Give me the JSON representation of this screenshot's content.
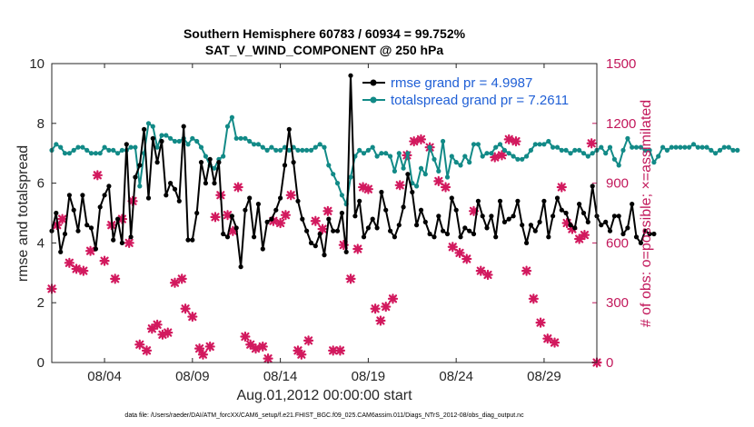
{
  "chart_data": {
    "type": "line",
    "title": "Southern Hemisphere 60783 / 60934 = 99.752%",
    "subtitle": "SAT_V_WIND_COMPONENT @ 250 hPa",
    "xlabel": "Aug.01,2012 00:00:00 start",
    "ylabel": "rmse and totalspread",
    "ylabel_right": "# of obs: o=possible; ×=assimilated",
    "footnote": "data file: /Users/raeder/DAI/ATM_forcXX/CAM6_setup/f.e21.FHIST_BGC.f09_025.CAM6assim.011/Diags_NTrS_2012-08/obs_diag_output.nc",
    "xlim": [
      1.0,
      32.0
    ],
    "ylim": [
      0,
      10
    ],
    "ylim_right": [
      0,
      1500
    ],
    "xticks": [
      4,
      9,
      14,
      19,
      24,
      29
    ],
    "xtick_labels": [
      "08/04",
      "08/09",
      "08/14",
      "08/19",
      "08/24",
      "08/29"
    ],
    "yticks": [
      0,
      2,
      4,
      6,
      8,
      10
    ],
    "yticks_right": [
      0,
      300,
      600,
      900,
      1200,
      1500
    ],
    "legend_position": "top-right",
    "series": [
      {
        "name": "rmse grand pr = 4.9987",
        "color": "#000000",
        "axis": "left",
        "marker": "circle",
        "x_start": 1.0,
        "x_step": 0.25,
        "values": [
          4.4,
          5.0,
          3.7,
          4.3,
          5.6,
          5.1,
          4.4,
          5.6,
          4.6,
          4.5,
          3.8,
          5.2,
          5.6,
          5.9,
          4.1,
          4.8,
          4.0,
          7.3,
          4.2,
          6.2,
          6.6,
          7.8,
          5.5,
          7.5,
          6.7,
          7.4,
          5.6,
          6.0,
          5.8,
          5.4,
          7.9,
          4.1,
          4.1,
          5.0,
          6.7,
          6.0,
          6.8,
          6.0,
          6.7,
          4.3,
          4.2,
          4.9,
          4.5,
          3.2,
          5.1,
          5.5,
          4.2,
          5.3,
          3.8,
          4.7,
          4.8,
          5.1,
          5.5,
          6.6,
          7.8,
          6.7,
          5.4,
          4.8,
          4.4,
          4.0,
          3.9,
          4.3,
          3.6,
          4.8,
          4.4,
          4.4,
          5.0,
          3.7,
          9.6,
          4.9,
          5.4,
          4.2,
          4.5,
          4.8,
          4.5,
          5.7,
          5.1,
          4.4,
          4.2,
          4.6,
          5.2,
          6.3,
          5.7,
          4.6,
          5.1,
          4.7,
          4.3,
          4.2,
          4.9,
          4.4,
          4.3,
          5.5,
          5.1,
          4.2,
          4.5,
          4.4,
          4.3,
          5.4,
          4.9,
          4.5,
          4.9,
          4.2,
          5.4,
          4.7,
          4.8,
          4.9,
          5.4,
          4.6,
          4.0,
          4.6,
          4.4,
          4.7,
          5.4,
          4.2,
          4.9,
          5.5,
          5.1,
          5.0,
          4.6,
          4.5,
          5.3,
          5.0,
          4.7,
          5.9,
          4.9,
          4.6,
          4.7,
          4.4,
          4.9,
          4.9,
          4.3,
          4.5,
          5.3,
          4.2,
          4.0,
          4.4,
          4.3,
          4.3
        ]
      },
      {
        "name": "totalspread grand pr = 7.2611",
        "color": "#128a87",
        "axis": "left",
        "marker": "circle",
        "x_start": 1.0,
        "x_step": 0.25,
        "values": [
          7.1,
          7.3,
          7.2,
          7.0,
          7.0,
          7.1,
          7.2,
          7.2,
          7.1,
          7.0,
          7.0,
          7.0,
          7.2,
          7.1,
          7.1,
          7.0,
          7.1,
          7.1,
          7.2,
          7.2,
          5.9,
          7.0,
          8.0,
          7.9,
          7.2,
          7.6,
          7.6,
          7.5,
          7.4,
          7.4,
          7.5,
          7.3,
          7.5,
          7.4,
          7.2,
          6.9,
          6.6,
          6.5,
          6.8,
          6.9,
          7.9,
          8.2,
          7.5,
          7.5,
          7.5,
          7.4,
          7.3,
          7.3,
          7.2,
          7.1,
          7.2,
          7.1,
          7.1,
          7.2,
          7.1,
          7.2,
          7.1,
          7.1,
          7.1,
          7.1,
          7.2,
          7.3,
          7.2,
          6.6,
          6.3,
          6.0,
          5.6,
          5.3,
          6.2,
          6.9,
          7.1,
          7.0,
          7.1,
          7.2,
          6.9,
          7.0,
          7.0,
          6.9,
          6.4,
          7.0,
          6.5,
          7.0,
          6.0,
          5.9,
          6.5,
          6.3,
          7.2,
          6.8,
          6.4,
          7.4,
          6.2,
          6.9,
          6.7,
          6.6,
          6.9,
          6.7,
          7.3,
          7.3,
          6.9,
          7.0,
          7.0,
          7.2,
          7.3,
          7.1,
          7.0,
          6.9,
          6.8,
          6.8,
          6.9,
          7.1,
          7.3,
          7.3,
          7.3,
          7.4,
          7.2,
          7.2,
          7.1,
          7.1,
          7.0,
          7.1,
          7.1,
          7.0,
          6.9,
          7.0,
          7.1,
          7.2,
          7.0,
          7.2,
          6.8,
          6.6,
          7.1,
          7.5,
          7.2,
          7.2,
          7.2,
          7.1,
          7.1,
          6.7,
          6.9,
          7.2,
          7.1,
          7.2,
          7.2,
          7.2,
          7.2,
          7.2,
          7.3,
          7.2,
          7.2,
          7.2,
          7.1,
          7.0,
          7.1,
          7.2,
          7.2,
          7.1,
          7.1
        ]
      },
      {
        "name": "# of obs assimilated",
        "color": "#d2195e",
        "axis": "right",
        "marker": "x",
        "points": [
          [
            1.0,
            370
          ],
          [
            1.3,
            690
          ],
          [
            1.6,
            720
          ],
          [
            2.0,
            500
          ],
          [
            2.4,
            470
          ],
          [
            2.8,
            460
          ],
          [
            3.2,
            560
          ],
          [
            3.6,
            940
          ],
          [
            4.0,
            510
          ],
          [
            4.4,
            690
          ],
          [
            4.6,
            420
          ],
          [
            5.0,
            720
          ],
          [
            5.4,
            600
          ],
          [
            5.6,
            810
          ],
          [
            6.0,
            90
          ],
          [
            6.4,
            60
          ],
          [
            6.7,
            170
          ],
          [
            7.0,
            190
          ],
          [
            7.3,
            140
          ],
          [
            7.6,
            150
          ],
          [
            8.0,
            400
          ],
          [
            8.4,
            420
          ],
          [
            8.6,
            270
          ],
          [
            9.0,
            230
          ],
          [
            9.4,
            70
          ],
          [
            9.6,
            40
          ],
          [
            10.0,
            80
          ],
          [
            10.3,
            730
          ],
          [
            10.6,
            840
          ],
          [
            11.0,
            740
          ],
          [
            11.3,
            660
          ],
          [
            11.6,
            880
          ],
          [
            12.0,
            130
          ],
          [
            12.3,
            90
          ],
          [
            12.6,
            70
          ],
          [
            13.0,
            80
          ],
          [
            13.3,
            20
          ],
          [
            13.6,
            710
          ],
          [
            14.0,
            700
          ],
          [
            14.3,
            740
          ],
          [
            14.6,
            840
          ],
          [
            15.0,
            60
          ],
          [
            15.2,
            40
          ],
          [
            15.6,
            110
          ],
          [
            16.0,
            710
          ],
          [
            16.4,
            670
          ],
          [
            16.7,
            760
          ],
          [
            17.0,
            60
          ],
          [
            17.4,
            60
          ],
          [
            17.6,
            590
          ],
          [
            18.0,
            420
          ],
          [
            18.4,
            570
          ],
          [
            18.7,
            880
          ],
          [
            19.0,
            870
          ],
          [
            19.4,
            270
          ],
          [
            19.7,
            210
          ],
          [
            20.0,
            280
          ],
          [
            20.4,
            320
          ],
          [
            20.8,
            890
          ],
          [
            21.2,
            1040
          ],
          [
            21.6,
            1110
          ],
          [
            22.0,
            1120
          ],
          [
            22.5,
            1080
          ],
          [
            23.0,
            910
          ],
          [
            23.4,
            880
          ],
          [
            23.8,
            580
          ],
          [
            24.2,
            550
          ],
          [
            24.6,
            520
          ],
          [
            25.0,
            760
          ],
          [
            25.4,
            460
          ],
          [
            25.8,
            440
          ],
          [
            26.2,
            1030
          ],
          [
            26.6,
            1040
          ],
          [
            27.0,
            1120
          ],
          [
            27.4,
            1110
          ],
          [
            28.0,
            460
          ],
          [
            28.4,
            320
          ],
          [
            28.8,
            200
          ],
          [
            29.2,
            120
          ],
          [
            29.6,
            100
          ],
          [
            30.0,
            880
          ],
          [
            30.3,
            700
          ],
          [
            30.6,
            670
          ],
          [
            31.0,
            620
          ],
          [
            31.3,
            640
          ],
          [
            31.7,
            1100
          ],
          [
            32.0,
            0
          ]
        ]
      }
    ]
  }
}
